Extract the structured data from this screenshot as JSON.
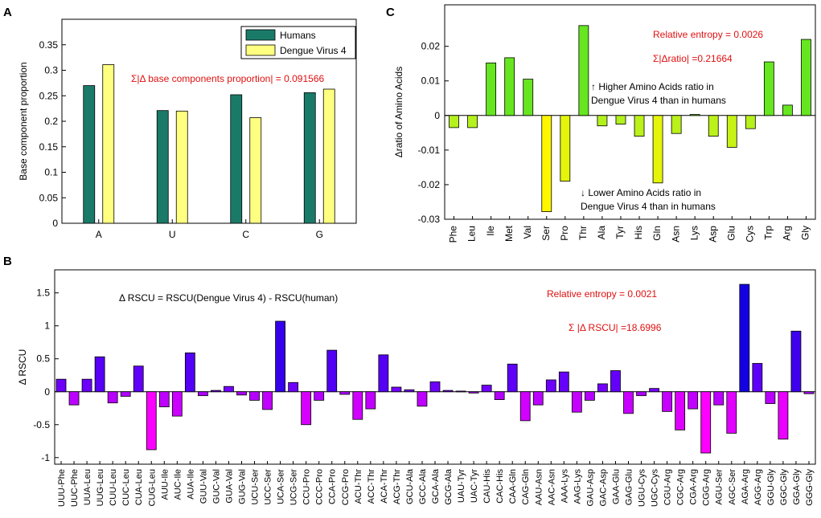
{
  "chart_data": [
    {
      "panel": "A",
      "type": "bar",
      "categories": [
        "A",
        "U",
        "C",
        "G"
      ],
      "series": [
        {
          "name": "Humans",
          "color": "#1a7a68",
          "values": [
            0.27,
            0.221,
            0.252,
            0.256
          ]
        },
        {
          "name": "Dengue Virus 4",
          "color": "#ffff80",
          "values": [
            0.311,
            0.22,
            0.207,
            0.263
          ]
        }
      ],
      "ylabel": "Base component proportion",
      "ylim": [
        0,
        0.4
      ],
      "yticks": [
        "0",
        "0.05",
        "0.1",
        "0.15",
        "0.2",
        "0.25",
        "0.3",
        "0.35"
      ],
      "annotation": "Σ|Δ base components proportion| = 0.091566",
      "legend_position": "top-right"
    },
    {
      "panel": "C",
      "type": "bar",
      "categories": [
        "Phe",
        "Leu",
        "Ile",
        "Met",
        "Val",
        "Ser",
        "Pro",
        "Thr",
        "Ala",
        "Tyr",
        "His",
        "Gln",
        "Asn",
        "Lys",
        "Asp",
        "Glu",
        "Cys",
        "Trp",
        "Arg",
        "Gly"
      ],
      "values": [
        -0.0035,
        -0.0035,
        0.0152,
        0.0167,
        0.0105,
        -0.0278,
        -0.019,
        0.026,
        -0.003,
        -0.0025,
        -0.006,
        -0.0195,
        -0.0052,
        0.0003,
        -0.006,
        -0.0092,
        -0.0038,
        0.0155,
        0.003,
        0.022
      ],
      "ylabel": "Δratio of Amino Acids",
      "ylim": [
        -0.03,
        0.03
      ],
      "yticks": [
        "-0.03",
        "-0.02",
        "-0.01",
        "0",
        "0.01",
        "0.02"
      ],
      "annotations": {
        "entropy": "Relative entropy = 0.0026",
        "sum": "Σ|Δratio| =0.21664",
        "higher_1": "↑ Higher Amino Acids ratio in",
        "higher_2": "Dengue Virus 4 than in humans",
        "lower_1": "↓ Lower Amino Acids ratio in",
        "lower_2": "Dengue Virus 4 than in humans"
      }
    },
    {
      "panel": "B",
      "type": "bar",
      "categories": [
        "UUU-Phe",
        "UUC-Phe",
        "UUA-Leu",
        "UUG-Leu",
        "CUU-Leu",
        "CUC-Leu",
        "CUA-Leu",
        "CUG-Leu",
        "AUU-Ile",
        "AUC-Ile",
        "AUA-Ile",
        "GUU-Val",
        "GUC-Val",
        "GUA-Val",
        "GUG-Val",
        "UCU-Ser",
        "UCC-Ser",
        "UCA-Ser",
        "UCG-Ser",
        "CCU-Pro",
        "CCC-Pro",
        "CCA-Pro",
        "CCG-Pro",
        "ACU-Thr",
        "ACC-Thr",
        "ACA-Thr",
        "ACG-Thr",
        "GCU-Ala",
        "GCC-Ala",
        "GCA-Ala",
        "GCG-Ala",
        "UAU-Tyr",
        "UAC-Tyr",
        "CAU-His",
        "CAC-His",
        "CAA-Gln",
        "CAG-Gln",
        "AAU-Asn",
        "AAC-Asn",
        "AAA-Lys",
        "AAG-Lys",
        "GAU-Asp",
        "GAC-Asp",
        "GAA-Glu",
        "GAG-Glu",
        "UGU-Cys",
        "UGC-Cys",
        "CGU-Arg",
        "CGC-Arg",
        "CGA-Arg",
        "CGG-Arg",
        "AGU-Ser",
        "AGC-Ser",
        "AGA-Arg",
        "AGG-Arg",
        "GGU-Gly",
        "GGC-Gly",
        "GGA-Gly",
        "GGG-Gly"
      ],
      "values": [
        0.19,
        -0.2,
        0.19,
        0.53,
        -0.17,
        -0.07,
        0.39,
        -0.88,
        -0.23,
        -0.37,
        0.59,
        -0.06,
        0.02,
        0.08,
        -0.05,
        -0.13,
        -0.27,
        1.07,
        0.14,
        -0.5,
        -0.13,
        0.63,
        -0.04,
        -0.42,
        -0.26,
        0.56,
        0.07,
        0.03,
        -0.22,
        0.15,
        0.02,
        0.01,
        -0.02,
        0.1,
        -0.12,
        0.42,
        -0.44,
        -0.2,
        0.18,
        0.3,
        -0.31,
        -0.13,
        0.12,
        0.32,
        -0.33,
        -0.06,
        0.05,
        -0.3,
        -0.58,
        -0.26,
        -0.93,
        -0.2,
        -0.63,
        1.63,
        0.43,
        -0.18,
        -0.72,
        0.92,
        -0.03
      ],
      "ylabel": "Δ RSCU",
      "ylim": [
        -1.1,
        1.85
      ],
      "yticks": [
        "-1",
        "-0.5",
        "0",
        "0.5",
        "1",
        "1.5"
      ],
      "annotations": {
        "formula": "Δ RSCU = RSCU(Dengue Virus 4) - RSCU(human)",
        "entropy": "Relative entropy = 0.0021",
        "sum": "Σ  |Δ RSCU| =18.6996"
      },
      "color_scale": {
        "positive": "#5a00ff",
        "negative": "#ff00ff"
      }
    }
  ],
  "panel_labels": {
    "a": "A",
    "b": "B",
    "c": "C"
  }
}
